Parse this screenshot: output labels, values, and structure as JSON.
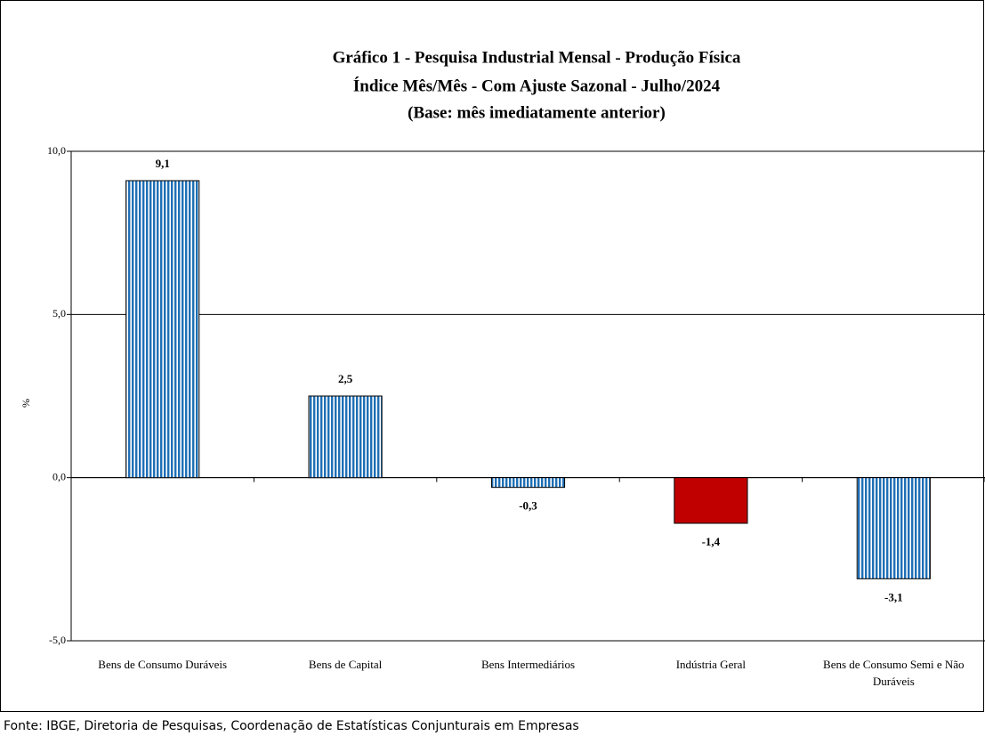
{
  "chart_data": {
    "type": "bar",
    "title": [
      "Gráfico 1 - Pesquisa Industrial Mensal - Produção Física",
      "Índice Mês/Mês - Com Ajuste Sazonal - Julho/2024",
      "(Base: mês imediatamente anterior)"
    ],
    "y_label": "%",
    "categories": [
      "Bens de Consumo Duráveis",
      "Bens de Capital",
      "Bens Intermediários",
      "Indústria Geral",
      "Bens de Consumo Semi e Não Duráveis"
    ],
    "values": [
      9.1,
      2.5,
      -0.3,
      -1.4,
      -3.1
    ],
    "value_labels": [
      "9,1",
      "2,5",
      "-0,3",
      "-1,4",
      "-3,1"
    ],
    "colors": [
      "#1f6fb5",
      "#1f6fb5",
      "#1f6fb5",
      "#c00000",
      "#1f6fb5"
    ],
    "patterns": [
      "stripes",
      "stripes",
      "stripes",
      "solid",
      "stripes"
    ],
    "ylim": [
      -5,
      10
    ],
    "yticks": [
      {
        "value": -5,
        "label": "-5,0"
      },
      {
        "value": 0,
        "label": "0,0"
      },
      {
        "value": 5,
        "label": "5,0"
      },
      {
        "value": 10,
        "label": "10,0"
      }
    ],
    "grid": true,
    "source": "Fonte: IBGE, Diretoria de Pesquisas, Coordenação de Estatísticas Conjunturais em Empresas"
  }
}
